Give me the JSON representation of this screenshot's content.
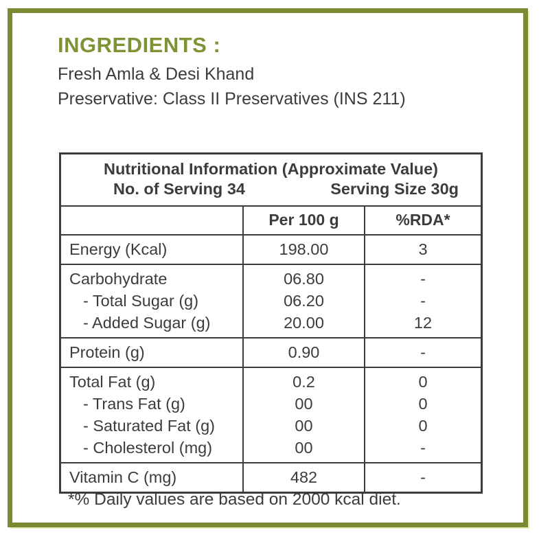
{
  "colors": {
    "accent_green": "#7d9334",
    "frame_green": "#7a8b33",
    "text_dark": "#3c3c3c",
    "table_border": "#3c3c3c"
  },
  "ingredients": {
    "heading": "INGREDIENTS :",
    "lines": [
      "Fresh Amla & Desi Khand",
      "Preservative: Class II Preservatives (INS 211)"
    ]
  },
  "nutrition_table": {
    "title": "Nutritional Information (Approximate Value)",
    "servings_label": "No. of Serving 34",
    "serving_size_label": "Serving Size 30g",
    "columns": {
      "nutrient": "",
      "per_100g": "Per 100 g",
      "rda": "%RDA*"
    },
    "rows": [
      {
        "lines": [
          {
            "label": "Energy (Kcal)",
            "per_100g": "198.00",
            "rda": "3"
          }
        ]
      },
      {
        "lines": [
          {
            "label": "Carbohydrate",
            "per_100g": "06.80",
            "rda": "-"
          },
          {
            "label": "- Total Sugar (g)",
            "indent": true,
            "per_100g": "06.20",
            "rda": "-"
          },
          {
            "label": "- Added Sugar (g)",
            "indent": true,
            "per_100g": "20.00",
            "rda": "12"
          }
        ]
      },
      {
        "lines": [
          {
            "label": "Protein (g)",
            "per_100g": "0.90",
            "rda": "-"
          }
        ]
      },
      {
        "lines": [
          {
            "label": "Total Fat (g)",
            "per_100g": "0.2",
            "rda": "0"
          },
          {
            "label": "- Trans Fat (g)",
            "indent": true,
            "per_100g": "00",
            "rda": "0"
          },
          {
            "label": "- Saturated Fat (g)",
            "indent": true,
            "per_100g": "00",
            "rda": "0"
          },
          {
            "label": "- Cholesterol (mg)",
            "indent": true,
            "per_100g": "00",
            "rda": "-"
          }
        ]
      },
      {
        "lines": [
          {
            "label": "Vitamin C (mg)",
            "per_100g": "482",
            "rda": "-"
          }
        ]
      }
    ]
  },
  "footnote": "*% Daily values are based on 2000 kcal diet."
}
